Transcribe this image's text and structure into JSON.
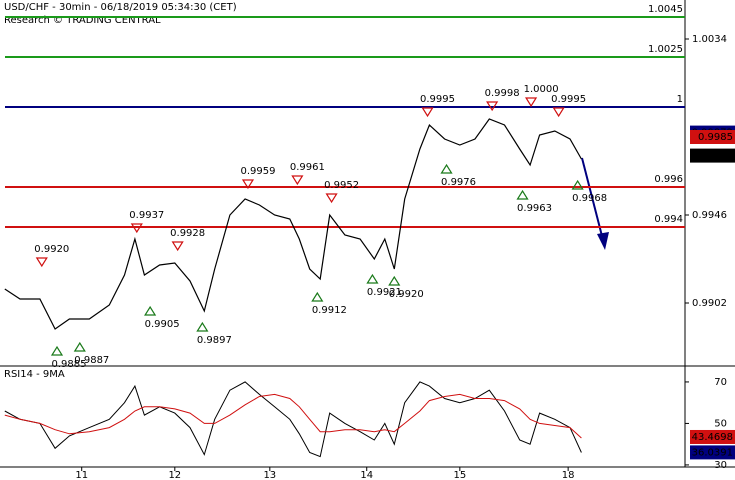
{
  "chart_data": [
    {
      "type": "line",
      "title": "USD/CHF - 30min - 06/18/2019 05:34:30 (CET)",
      "subtitle": "Research © TRADING CENTRAL",
      "x": [
        0.19,
        0.35,
        0.56,
        0.72,
        0.87,
        1.08,
        1.29,
        1.45,
        1.56,
        1.66,
        1.82,
        1.98,
        2.14,
        2.29,
        2.4,
        2.56,
        2.72,
        2.87,
        3.03,
        3.19,
        3.29,
        3.4,
        3.51,
        3.61,
        3.77,
        3.93,
        4.08,
        4.19,
        4.29,
        4.4,
        4.56,
        4.66,
        4.82,
        4.98,
        5.14,
        5.29,
        5.45,
        5.61,
        5.72,
        5.82,
        5.98,
        6.14,
        6.26
      ],
      "values": [
        0.9909,
        0.9904,
        0.9904,
        0.9889,
        0.9894,
        0.9894,
        0.9901,
        0.9916,
        0.9934,
        0.9916,
        0.9921,
        0.9922,
        0.9913,
        0.9898,
        0.9919,
        0.9946,
        0.9954,
        0.9951,
        0.9946,
        0.9944,
        0.9934,
        0.9919,
        0.9914,
        0.9946,
        0.9936,
        0.9934,
        0.9924,
        0.9934,
        0.9919,
        0.9954,
        0.9979,
        0.9991,
        0.9984,
        0.9981,
        0.9984,
        0.9994,
        0.9991,
        0.9979,
        0.9971,
        0.9986,
        0.9988,
        0.9984,
        0.9974
      ],
      "color": "#000000",
      "xlim": [
        0.14,
        7.35
      ],
      "xticks": [
        {
          "value": 1,
          "label": "11"
        },
        {
          "value": 1.98,
          "label": "12"
        },
        {
          "value": 2.98,
          "label": "13"
        },
        {
          "value": 4,
          "label": "14"
        },
        {
          "value": 4.98,
          "label": "15"
        },
        {
          "value": 6.12,
          "label": "18"
        }
      ],
      "ylim": [
        0.9871,
        1.00535
      ],
      "yticks": [
        1.0034,
        0.9946,
        0.9902
      ],
      "levels": [
        {
          "value": 1.0045,
          "color": "#1a9a1a"
        },
        {
          "value": 1.0025,
          "color": "#1a9a1a"
        },
        {
          "value": 1,
          "color": "#00007f"
        },
        {
          "value": 0.996,
          "color": "#d01010"
        },
        {
          "value": 0.994,
          "color": "#d01010"
        }
      ],
      "price_tags": [
        {
          "value": 0.99872,
          "color": "#00007f"
        },
        {
          "value": 0.9985,
          "color": "#d01010"
        },
        {
          "value": 0.99757,
          "color": "#000000"
        }
      ],
      "annotations": [
        {
          "x": 0.58,
          "value": 0.992,
          "label": "0.9920",
          "kind": "high"
        },
        {
          "x": 0.74,
          "value": 0.9885,
          "label": "0.9885",
          "kind": "low"
        },
        {
          "x": 0.98,
          "value": 0.9887,
          "label": "0.9887",
          "kind": "low"
        },
        {
          "x": 1.58,
          "value": 0.9937,
          "label": "0.9937",
          "kind": "high"
        },
        {
          "x": 1.72,
          "value": 0.9905,
          "label": "0.9905",
          "kind": "low"
        },
        {
          "x": 2.01,
          "value": 0.9928,
          "label": "0.9928",
          "kind": "high"
        },
        {
          "x": 2.27,
          "value": 0.9897,
          "label": "0.9897",
          "kind": "low"
        },
        {
          "x": 2.75,
          "value": 0.9959,
          "label": "0.9959",
          "kind": "high"
        },
        {
          "x": 3.27,
          "value": 0.9961,
          "label": "0.9961",
          "kind": "high"
        },
        {
          "x": 3.48,
          "value": 0.9912,
          "label": "0.9912",
          "kind": "low"
        },
        {
          "x": 3.63,
          "value": 0.9952,
          "label": "0.9952",
          "kind": "high"
        },
        {
          "x": 4.06,
          "value": 0.9921,
          "label": "0.9921",
          "kind": "low"
        },
        {
          "x": 4.29,
          "value": 0.992,
          "label": "0.9920",
          "kind": "low"
        },
        {
          "x": 4.64,
          "value": 0.9995,
          "label": "0.9995",
          "kind": "high"
        },
        {
          "x": 4.84,
          "value": 0.9976,
          "label": "0.9976",
          "kind": "low"
        },
        {
          "x": 5.32,
          "value": 0.9998,
          "label": "0.9998",
          "kind": "high"
        },
        {
          "x": 5.64,
          "value": 0.9963,
          "label": "0.9963",
          "kind": "low"
        },
        {
          "x": 5.73,
          "value": 1.0,
          "label": "1.0000",
          "kind": "high"
        },
        {
          "x": 6.02,
          "value": 0.9995,
          "label": "0.9995",
          "kind": "high"
        },
        {
          "x": 6.22,
          "value": 0.9968,
          "label": "0.9968",
          "kind": "low"
        }
      ]
    },
    {
      "type": "line",
      "title": "RSI14 - 9MA",
      "x": [
        0.19,
        0.35,
        0.56,
        0.72,
        0.87,
        1.08,
        1.29,
        1.45,
        1.56,
        1.66,
        1.82,
        1.98,
        2.14,
        2.29,
        2.4,
        2.56,
        2.72,
        2.87,
        3.03,
        3.19,
        3.29,
        3.4,
        3.51,
        3.61,
        3.77,
        3.93,
        4.08,
        4.19,
        4.29,
        4.4,
        4.56,
        4.66,
        4.82,
        4.98,
        5.14,
        5.29,
        5.45,
        5.61,
        5.72,
        5.82,
        5.98,
        6.14,
        6.26
      ],
      "series": [
        {
          "color": "#000000",
          "values": [
            56,
            52,
            50,
            38,
            44,
            48,
            52,
            60,
            68,
            54,
            58,
            55,
            48,
            35,
            52,
            66,
            70,
            64,
            58,
            52,
            45,
            36,
            34,
            55,
            50,
            46,
            42,
            50,
            40,
            60,
            70,
            68,
            62,
            60,
            62,
            66,
            56,
            42,
            40,
            55,
            52,
            48,
            36
          ]
        },
        {
          "color": "#d01010",
          "values": [
            54,
            52,
            50,
            47,
            45,
            46,
            48,
            52,
            56,
            58,
            58,
            57,
            55,
            50,
            50,
            54,
            59,
            63,
            64,
            62,
            58,
            52,
            46,
            46,
            47,
            47,
            46,
            47,
            46,
            50,
            56,
            61,
            63,
            64,
            62,
            62,
            61,
            57,
            52,
            50,
            49,
            48,
            43
          ]
        }
      ],
      "ylim": [
        29,
        77.2
      ],
      "yticks": [
        70,
        50,
        30
      ],
      "price_tags": [
        {
          "value": 43.4698,
          "color": "#d01010"
        },
        {
          "value": 36.0391,
          "color": "#00007f"
        }
      ]
    }
  ]
}
